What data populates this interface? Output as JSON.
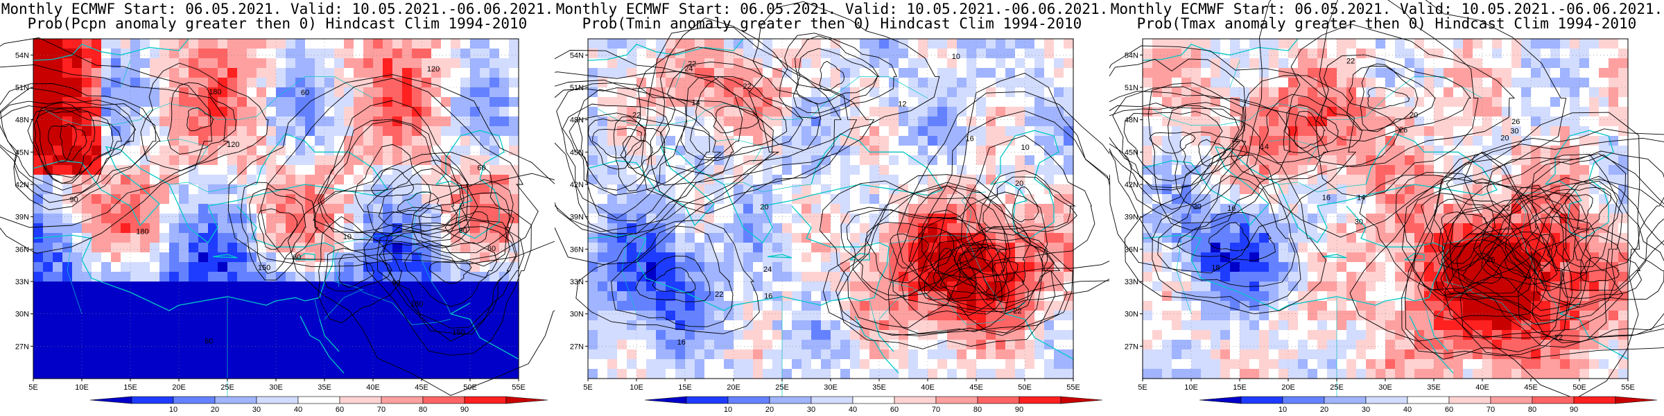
{
  "panels": [
    {
      "title_line1": "Monthly ECMWF Start: 06.05.2021. Valid: 10.05.2021.-06.06.2021.",
      "title_line2": "Prob(Pcpn anomaly greater then 0) Hindcast Clim 1994-2010",
      "contour_labels": [
        "180",
        "150",
        "120",
        "90",
        "60",
        "30",
        "10",
        "1"
      ]
    },
    {
      "title_line1": "Monthly ECMWF Start: 06.05.2021. Valid: 10.05.2021.-06.06.2021.",
      "title_line2": "Prob(Tmin anomaly greater then 0) Hindcast Clim 1994-2010",
      "contour_labels": [
        "10",
        "12",
        "14",
        "16",
        "18",
        "20",
        "22",
        "24",
        "26"
      ]
    },
    {
      "title_line1": "Monthly ECMWF Start: 06.05.2021. Valid: 10.05.2021.-06.06.2021.",
      "title_line2": "Prob(Tmax anomaly greater then 0) Hindcast Clim 1994-2010",
      "contour_labels": [
        "14",
        "16",
        "18",
        "20",
        "22",
        "24",
        "26",
        "28",
        "30"
      ]
    }
  ],
  "axes": {
    "lat_ticks": [
      "54N",
      "51N",
      "48N",
      "45N",
      "42N",
      "39N",
      "36N",
      "33N",
      "30N",
      "27N"
    ],
    "lon_ticks": [
      "5E",
      "10E",
      "15E",
      "20E",
      "25E",
      "30E",
      "35E",
      "40E",
      "45E",
      "50E",
      "55E"
    ]
  },
  "colorbar": {
    "labels": [
      "10",
      "20",
      "30",
      "40",
      "60",
      "70",
      "80",
      "90"
    ],
    "colors": [
      "#0000c8",
      "#1e3cff",
      "#6482ff",
      "#a0b4ff",
      "#d2dcff",
      "#ffffff",
      "#ffd2d2",
      "#ffa0a0",
      "#ff6464",
      "#ff2020",
      "#c80000"
    ]
  },
  "colors": {
    "coast": "#00c8c8",
    "contour": "#000000"
  }
}
